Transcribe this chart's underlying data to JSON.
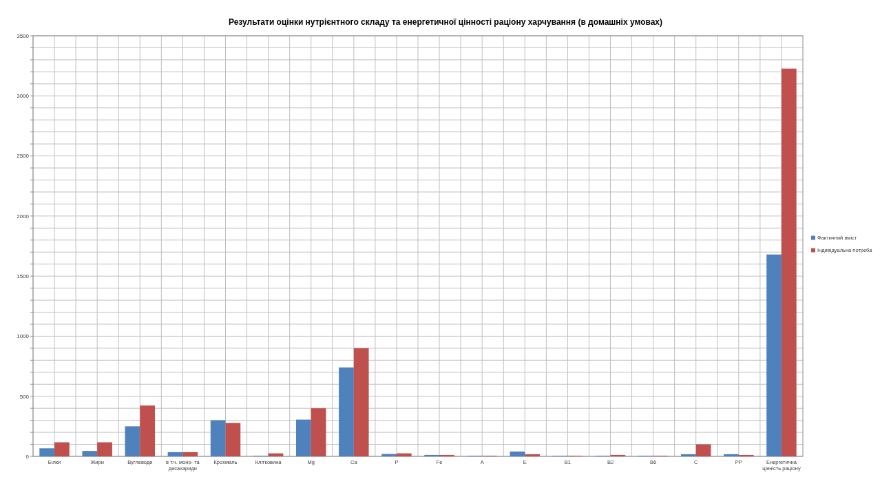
{
  "chart_data": {
    "type": "bar",
    "title": "Результати оцінки нутрієнтного складу та енергетичної цінності раціону харчування (в домашніх умовах)",
    "categories": [
      "Білки",
      "Жири",
      "Вуглеводи",
      "в т.ч. моно- та дисахариди",
      "Крохмаль",
      "Клітковина",
      "Mg",
      "Ca",
      "P",
      "Fe",
      "A",
      "E",
      "B1",
      "B2",
      "B6",
      "C",
      "PP",
      "Енергетична цінність раціону"
    ],
    "series": [
      {
        "name": "Фактичний вміст",
        "color": "#4f81bd",
        "values": [
          67,
          45,
          250,
          35,
          300,
          5,
          306,
          740,
          20,
          12,
          5,
          40,
          5,
          5,
          5,
          18,
          18,
          1680
        ]
      },
      {
        "name": "Індивідуальна потреба",
        "color": "#c0504d",
        "values": [
          117,
          117,
          423,
          35,
          278,
          25,
          400,
          900,
          25,
          12,
          5,
          18,
          5,
          12,
          5,
          100,
          12,
          3227
        ]
      }
    ],
    "ylim": [
      0,
      3500
    ],
    "yticks": [
      0,
      {
        "value": 100,
        "label": null
      },
      {
        "value": 200,
        "label": null
      },
      {
        "value": 300,
        "label": null
      },
      {
        "value": 400,
        "label": null
      },
      500,
      {
        "value": 600,
        "label": null
      },
      {
        "value": 700,
        "label": null
      },
      {
        "value": 800,
        "label": null
      },
      {
        "value": 900,
        "label": null
      },
      1000,
      {
        "value": 1100,
        "label": null
      },
      {
        "value": 1200,
        "label": null
      },
      {
        "value": 1300,
        "label": null
      },
      {
        "value": 1400,
        "label": null
      },
      1500,
      {
        "value": 1600,
        "label": null
      },
      {
        "value": 1700,
        "label": null
      },
      {
        "value": 1800,
        "label": null
      },
      {
        "value": 1900,
        "label": null
      },
      2000,
      {
        "value": 2100,
        "label": null
      },
      {
        "value": 2200,
        "label": null
      },
      {
        "value": 2300,
        "label": null
      },
      {
        "value": 2400,
        "label": null
      },
      2500,
      {
        "value": 2600,
        "label": null
      },
      {
        "value": 2700,
        "label": null
      },
      {
        "value": 2800,
        "label": null
      },
      {
        "value": 2900,
        "label": null
      },
      3000,
      {
        "value": 3100,
        "label": null
      },
      {
        "value": 3200,
        "label": null
      },
      {
        "value": 3300,
        "label": null
      },
      {
        "value": 3400,
        "label": null
      },
      3500
    ],
    "grid": true,
    "legend": "right"
  }
}
